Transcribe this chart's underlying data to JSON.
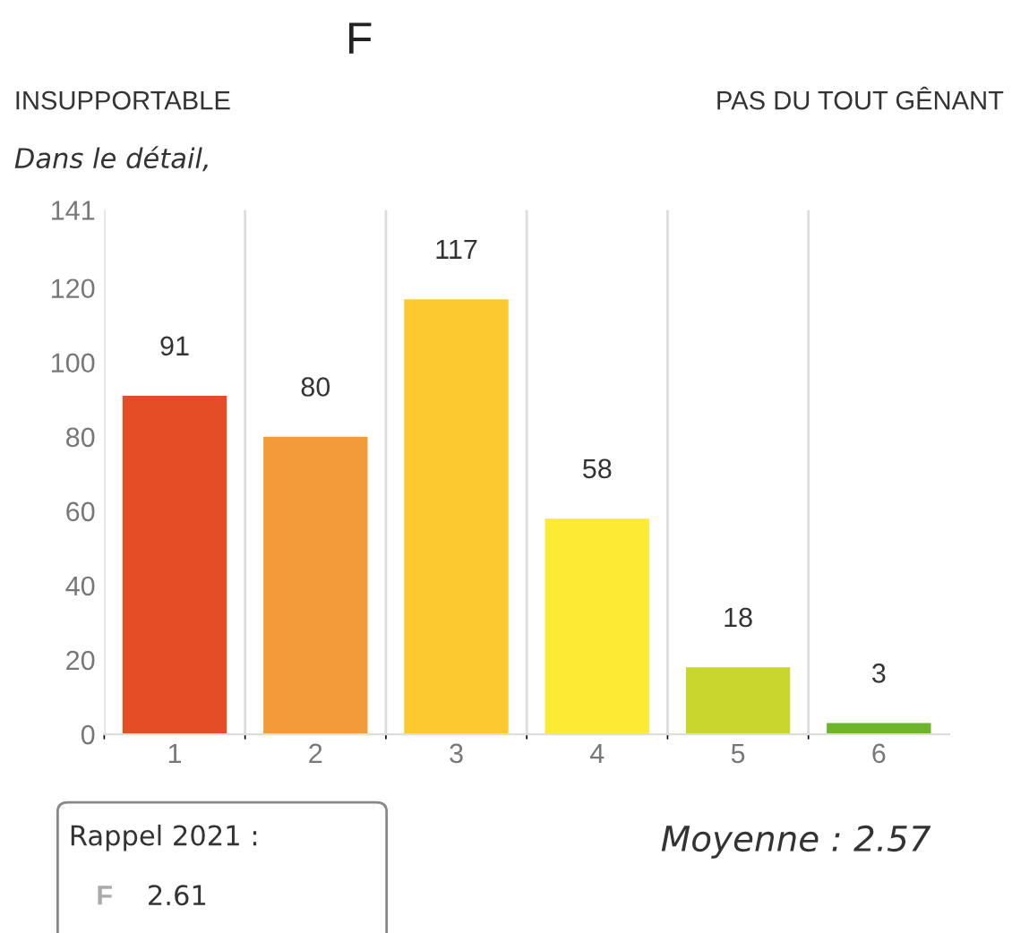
{
  "chart_data": {
    "type": "bar",
    "title": "F",
    "categories": [
      "1",
      "2",
      "3",
      "4",
      "5",
      "6"
    ],
    "values": [
      91,
      80,
      117,
      58,
      18,
      3
    ],
    "colors": [
      "#e44d26",
      "#f39a3a",
      "#fcc930",
      "#fdeb33",
      "#c9d62d",
      "#6db52d"
    ],
    "ylim": [
      0,
      141
    ],
    "yticks": [
      0,
      20,
      40,
      60,
      80,
      100,
      120,
      141
    ],
    "data_labels": true,
    "grid": "x",
    "legend": false,
    "annotations": [
      "INSUPPORTABLE",
      "PAS DU TOUT GÊNANT",
      "Dans le détail,",
      "Rappel 2021 :",
      "F",
      "2.61",
      "Moyenne : 2.57"
    ]
  }
}
